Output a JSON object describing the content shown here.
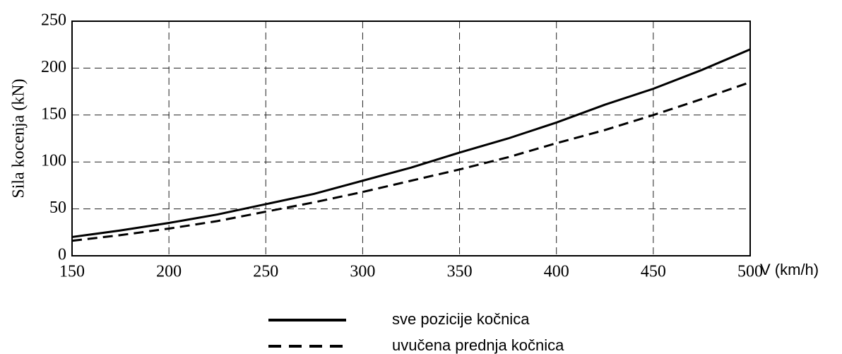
{
  "chart_data": {
    "type": "line",
    "ylabel": "Sila kocenja   (kN)",
    "xlabel": "V (km/h)",
    "x": [
      150,
      175,
      200,
      225,
      250,
      275,
      300,
      325,
      350,
      375,
      400,
      425,
      450,
      475,
      500
    ],
    "series": [
      {
        "name": "sve pozicije kočnica",
        "color": "#000000",
        "line_style": "solid",
        "values": [
          20,
          27,
          35,
          44,
          55,
          66,
          80,
          94,
          110,
          125,
          142,
          161,
          178,
          198,
          220
        ]
      },
      {
        "name": "uvučena prednja kočnica",
        "color": "#000000",
        "line_style": "dashed",
        "values": [
          16,
          22,
          29,
          37,
          47,
          57,
          68,
          80,
          92,
          105,
          120,
          134,
          150,
          167,
          185
        ]
      }
    ],
    "xlim": [
      150,
      500
    ],
    "xticks": [
      150,
      200,
      250,
      300,
      350,
      400,
      450,
      500
    ],
    "ylim": [
      0,
      250
    ],
    "yticks": [
      0,
      50,
      100,
      150,
      200,
      250
    ],
    "grid": true,
    "legend": "bottom"
  }
}
